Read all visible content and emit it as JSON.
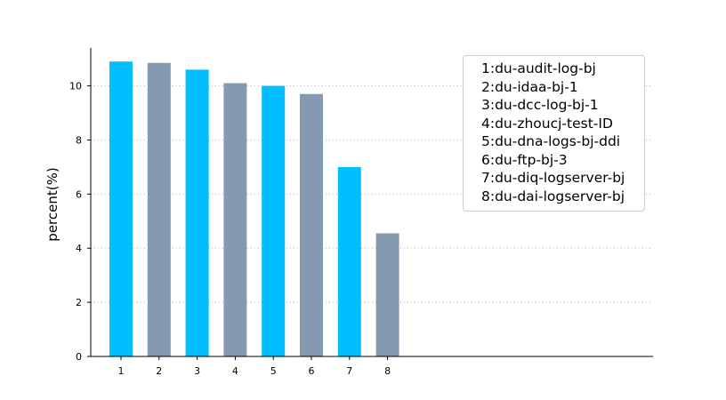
{
  "chart_data": {
    "type": "bar",
    "categories": [
      "1",
      "2",
      "3",
      "4",
      "5",
      "6",
      "7",
      "8"
    ],
    "values": [
      10.9,
      10.85,
      10.6,
      10.1,
      10.0,
      9.7,
      7.0,
      4.55
    ],
    "bar_colors": [
      "#00bfff",
      "#8599b0",
      "#00bfff",
      "#8599b0",
      "#00bfff",
      "#8599b0",
      "#00bfff",
      "#8599b0"
    ],
    "title": "",
    "xlabel": "",
    "ylabel": "percent(%)",
    "ylim": [
      0,
      11.4
    ],
    "yticks": [
      0,
      2,
      4,
      6,
      8,
      10
    ],
    "grid": "horizontal dotted",
    "legend_position": "top-right",
    "legend": [
      "1:du-audit-log-bj",
      "2:du-idaa-bj-1",
      "3:du-dcc-log-bj-1",
      "4:du-zhoucj-test-ID",
      "5:du-dna-logs-bj-ddi",
      "6:du-ftp-bj-3",
      "7:du-diq-logserver-bj",
      "8:du-dai-logserver-bj"
    ]
  }
}
